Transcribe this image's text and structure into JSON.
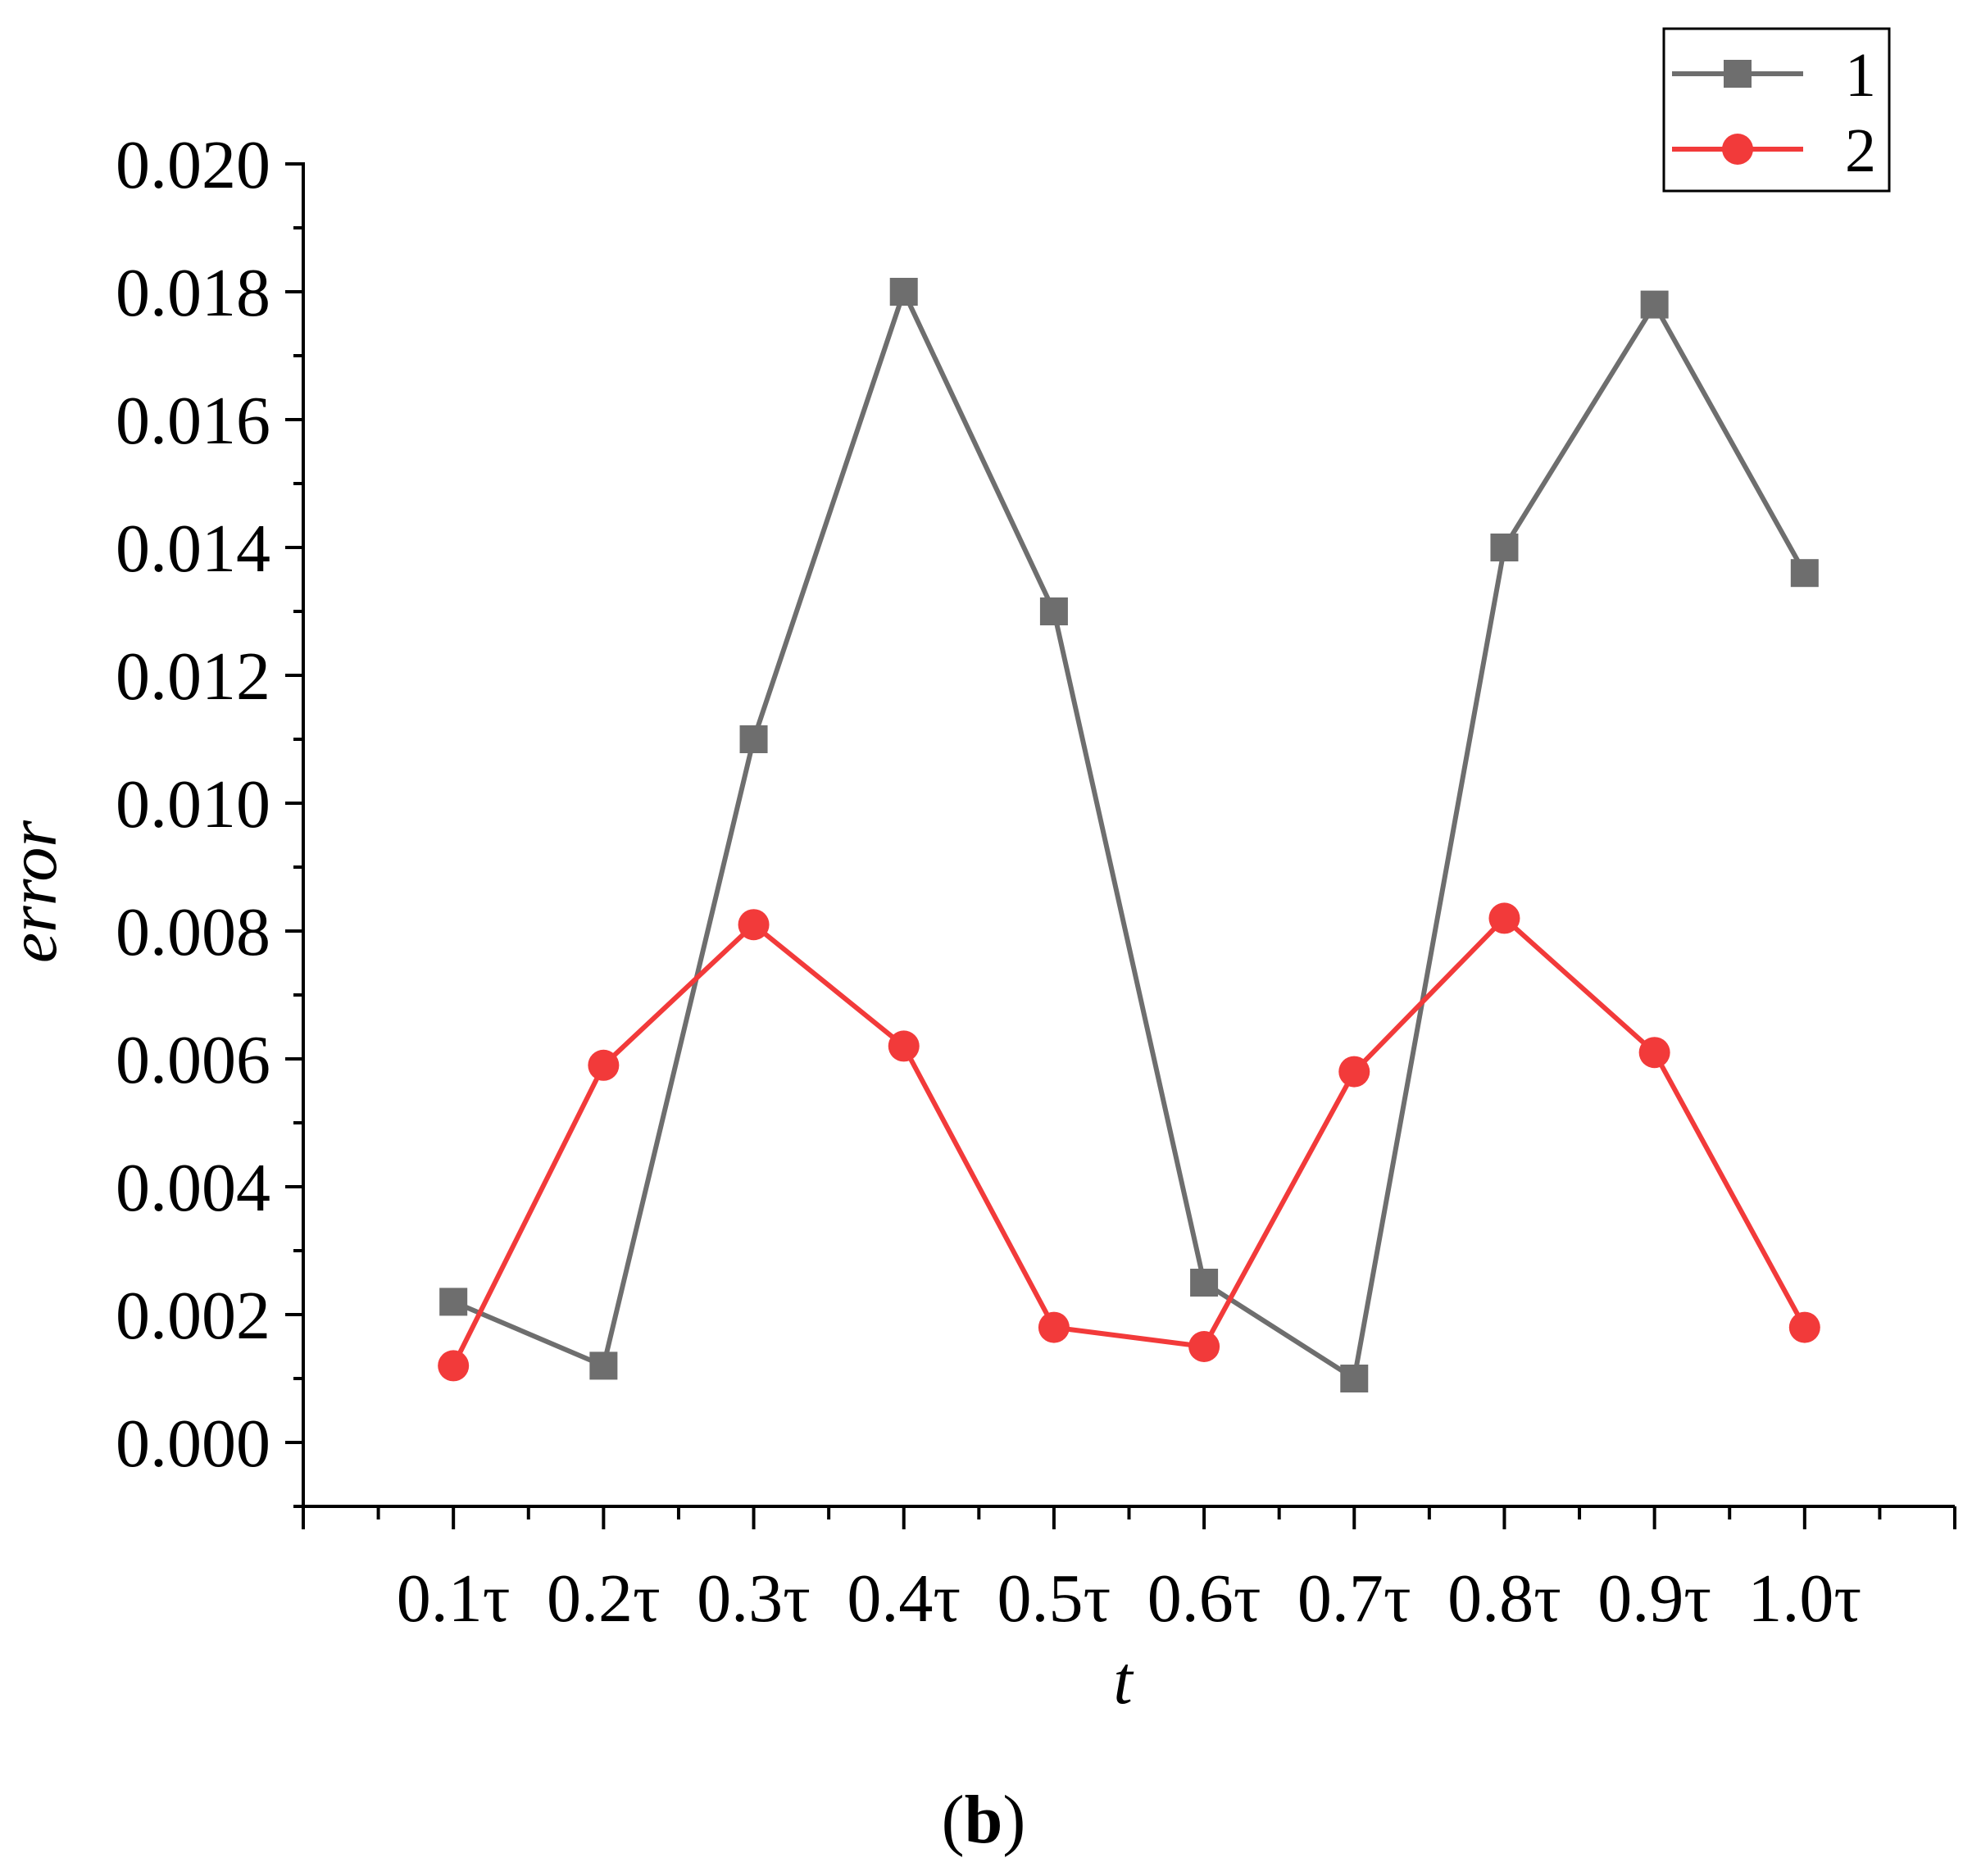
{
  "chart_data": {
    "type": "line",
    "title": "",
    "xlabel": "t",
    "ylabel": "error",
    "categories": [
      "0.1τ",
      "0.2τ",
      "0.3τ",
      "0.4τ",
      "0.5τ",
      "0.6τ",
      "0.7τ",
      "0.8τ",
      "0.9τ",
      "1.0τ"
    ],
    "x": [
      0.1,
      0.2,
      0.3,
      0.4,
      0.5,
      0.6,
      0.7,
      0.8,
      0.9,
      1.0
    ],
    "xlim": [
      0.0,
      1.1
    ],
    "ylim": [
      -0.001,
      0.02
    ],
    "yticks": [
      "0.000",
      "0.002",
      "0.004",
      "0.006",
      "0.008",
      "0.010",
      "0.012",
      "0.014",
      "0.016",
      "0.018",
      "0.020"
    ],
    "ytick_values": [
      0.0,
      0.002,
      0.004,
      0.006,
      0.008,
      0.01,
      0.012,
      0.014,
      0.016,
      0.018,
      0.02
    ],
    "grid": false,
    "legend_position": "top-right",
    "series": [
      {
        "name": "1",
        "marker": "square",
        "color": "#6e6e6e",
        "values": [
          0.0022,
          0.0012,
          0.011,
          0.018,
          0.013,
          0.0025,
          0.001,
          0.014,
          0.0178,
          0.0136
        ]
      },
      {
        "name": "2",
        "marker": "circle",
        "color": "#f23a3a",
        "values": [
          0.0012,
          0.0059,
          0.0081,
          0.0062,
          0.0018,
          0.0015,
          0.0058,
          0.0082,
          0.0061,
          0.0018
        ]
      }
    ]
  },
  "caption": {
    "open": "(",
    "letter": "b",
    "close": ")"
  }
}
